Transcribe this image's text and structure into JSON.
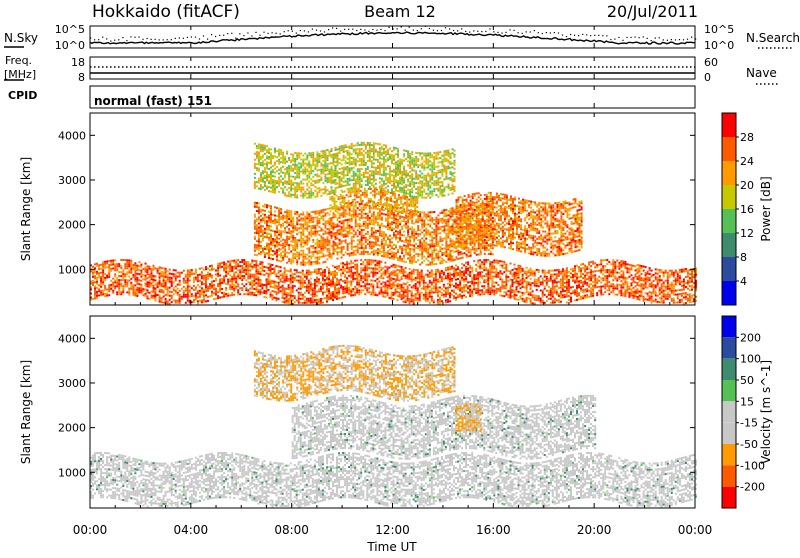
{
  "header": {
    "radar": "Hokkaido (fitACF)",
    "beam": "Beam 12",
    "date": "20/Jul/2011"
  },
  "noise_panel": {
    "left_label": "N.Sky",
    "right_label": "N.Search",
    "left_ticks": [
      "10^5",
      "10^0"
    ],
    "right_ticks": [
      "10^5",
      "10^0"
    ]
  },
  "freq_panel": {
    "left_label_1": "Freq.",
    "left_label_2": "[MHz]",
    "left_ticks": [
      "18",
      "8"
    ],
    "right_label": "Nave",
    "right_ticks": [
      "60",
      "0"
    ]
  },
  "cpid_panel": {
    "label": "CPID",
    "text": "normal (fast) 151"
  },
  "time_axis": {
    "xlabel": "Time UT",
    "tick_labels": [
      "00:00",
      "04:00",
      "08:00",
      "12:00",
      "16:00",
      "20:00",
      "00:00"
    ]
  },
  "colors": {
    "power": [
      "#0000ee",
      "#2b4b9e",
      "#3e8c6e",
      "#55c055",
      "#c8c800",
      "#ff9a00",
      "#ff5a00",
      "#ff0000"
    ],
    "velocity": [
      "#ff0000",
      "#ff5a00",
      "#ff9a00",
      "#c8c8c8",
      "#c8c8c8",
      "#55c055",
      "#3e8c6e",
      "#2b4b9e",
      "#0000ee"
    ],
    "velocity_ground": "#c8c8c8"
  },
  "chart_data": [
    {
      "type": "heatmap",
      "quantity": "power",
      "xlabel": "",
      "ylabel": "Slant Range [km]",
      "ylim": [
        200,
        4500
      ],
      "y_ticks": [
        "1000",
        "2000",
        "3000",
        "4000"
      ],
      "colorbar": {
        "label": "Power [dB]",
        "tick_labels": [
          "4",
          "8",
          "12",
          "16",
          "20",
          "24",
          "28"
        ]
      },
      "echo_bands": [
        {
          "time": [
            0.0,
            24.0
          ],
          "range": [
            300,
            1100
          ],
          "power_db": 26
        },
        {
          "time": [
            6.5,
            16.0
          ],
          "range": [
            1200,
            2400
          ],
          "power_db": 24
        },
        {
          "time": [
            14.5,
            19.5
          ],
          "range": [
            1400,
            2600
          ],
          "power_db": 24
        },
        {
          "time": [
            9.5,
            13.0
          ],
          "range": [
            2300,
            2700
          ],
          "power_db": 22
        },
        {
          "time": [
            6.5,
            14.5
          ],
          "range": [
            2700,
            3700
          ],
          "power_db": 18
        }
      ]
    },
    {
      "type": "heatmap",
      "quantity": "velocity",
      "xlabel": "Time UT",
      "ylabel": "Slant Range [km]",
      "ylim": [
        200,
        4500
      ],
      "y_ticks": [
        "1000",
        "2000",
        "3000",
        "4000"
      ],
      "colorbar": {
        "label": "Velocity [m s^-1]",
        "tick_labels": [
          "200",
          "100",
          "50",
          "15",
          "-15",
          "-50",
          "-100",
          "-200"
        ]
      },
      "echo_bands": [
        {
          "time": [
            0.0,
            24.0
          ],
          "range": [
            300,
            1300
          ],
          "velocity": 0
        },
        {
          "time": [
            8.0,
            20.0
          ],
          "range": [
            1400,
            2600
          ],
          "velocity": 0
        },
        {
          "time": [
            14.5,
            15.5
          ],
          "range": [
            1800,
            2400
          ],
          "velocity": -60
        },
        {
          "time": [
            6.5,
            14.5
          ],
          "range": [
            2700,
            3700
          ],
          "velocity": -50
        }
      ]
    }
  ]
}
